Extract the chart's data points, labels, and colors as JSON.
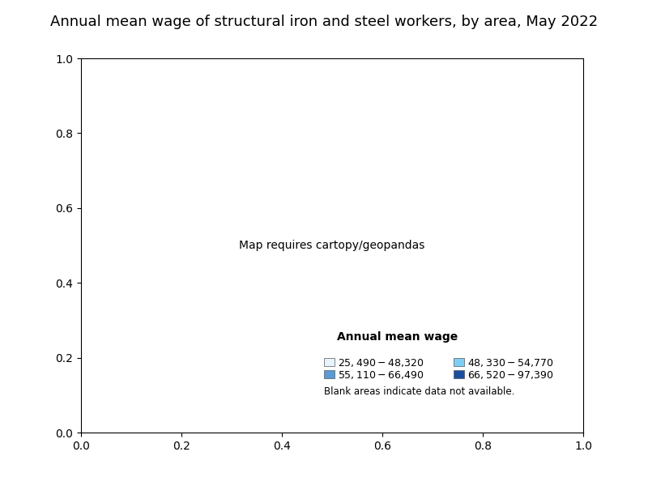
{
  "title": "Annual mean wage of structural iron and steel workers, by area, May 2022",
  "title_fontsize": 13,
  "legend_title": "Annual mean wage",
  "legend_title_fontsize": 10,
  "legend_fontsize": 9,
  "legend_labels": [
    "$25,490 - $48,320",
    "$48,330 - $54,770",
    "$55,110 - $66,490",
    "$66,520 - $97,390"
  ],
  "legend_colors": [
    "#e8f4fc",
    "#7ecef4",
    "#5b9bd5",
    "#1a4fa0"
  ],
  "blank_note": "Blank areas indicate data not available.",
  "background_color": "#ffffff",
  "map_background": "#ffffff",
  "border_color": "#888888",
  "border_width": 0.3
}
